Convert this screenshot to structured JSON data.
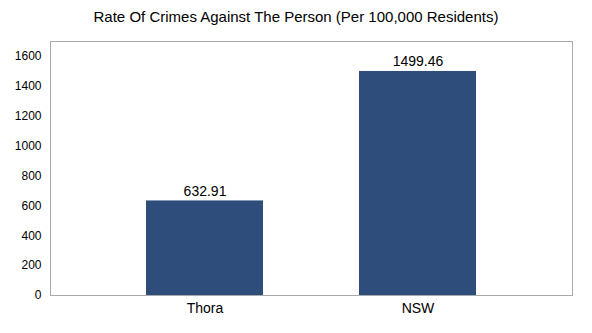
{
  "chart_data": {
    "type": "bar",
    "title": "Rate Of Crimes Against The Person (Per 100,000 Residents)",
    "categories": [
      "Thora",
      "NSW"
    ],
    "values": [
      632.91,
      1499.46
    ],
    "color": "#2e4d7b",
    "ylim": [
      0,
      1700
    ],
    "yticks": [
      0,
      200,
      400,
      600,
      800,
      1000,
      1200,
      1400,
      1600
    ],
    "grid": false,
    "data_labels": true
  }
}
